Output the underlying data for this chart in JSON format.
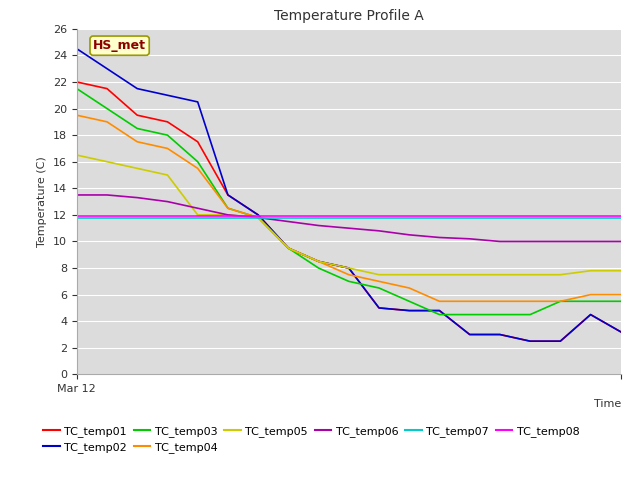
{
  "title": "Temperature Profile A",
  "ylabel": "Temperature (C)",
  "ylim": [
    0,
    26
  ],
  "yticks": [
    0,
    2,
    4,
    6,
    8,
    10,
    12,
    14,
    16,
    18,
    20,
    22,
    24,
    26
  ],
  "x_label_start": "Mar 12",
  "time_label": "Time",
  "annotation_text": "HS_met",
  "annotation_color": "#8B0000",
  "annotation_bg": "#FFFFCC",
  "annotation_border": "#999900",
  "plot_bg": "#DCDCDC",
  "fig_bg": "#FFFFFF",
  "series_order": [
    "TC_temp01",
    "TC_temp02",
    "TC_temp03",
    "TC_temp04",
    "TC_temp05",
    "TC_temp06",
    "TC_temp07",
    "TC_temp08"
  ],
  "series": {
    "TC_temp01": {
      "color": "#FF0000",
      "y": [
        22.0,
        21.5,
        19.5,
        19.0,
        17.5,
        13.5,
        12.0,
        9.5,
        8.5,
        8.0,
        5.0,
        4.8,
        4.8,
        3.0,
        3.0,
        2.5,
        2.5,
        4.5,
        3.2
      ]
    },
    "TC_temp02": {
      "color": "#0000CD",
      "y": [
        24.5,
        23.0,
        21.5,
        21.0,
        20.5,
        13.5,
        12.0,
        9.5,
        8.5,
        8.0,
        5.0,
        4.8,
        4.8,
        3.0,
        3.0,
        2.5,
        2.5,
        4.5,
        3.2
      ]
    },
    "TC_temp03": {
      "color": "#00CC00",
      "y": [
        21.5,
        20.0,
        18.5,
        18.0,
        16.0,
        12.5,
        11.8,
        9.5,
        8.0,
        7.0,
        6.5,
        5.5,
        4.5,
        4.5,
        4.5,
        4.5,
        5.5,
        5.5,
        5.5
      ]
    },
    "TC_temp04": {
      "color": "#FF8C00",
      "y": [
        19.5,
        19.0,
        17.5,
        17.0,
        15.5,
        12.5,
        11.8,
        9.5,
        8.5,
        7.5,
        7.0,
        6.5,
        5.5,
        5.5,
        5.5,
        5.5,
        5.5,
        6.0,
        6.0
      ]
    },
    "TC_temp05": {
      "color": "#CCCC00",
      "y": [
        16.5,
        16.0,
        15.5,
        15.0,
        12.0,
        12.0,
        11.8,
        9.5,
        8.5,
        8.0,
        7.5,
        7.5,
        7.5,
        7.5,
        7.5,
        7.5,
        7.5,
        7.8,
        7.8
      ]
    },
    "TC_temp06": {
      "color": "#AA00AA",
      "y": [
        13.5,
        13.5,
        13.3,
        13.0,
        12.5,
        12.0,
        11.8,
        11.5,
        11.2,
        11.0,
        10.8,
        10.5,
        10.3,
        10.2,
        10.0,
        10.0,
        10.0,
        10.0,
        10.0
      ]
    },
    "TC_temp07": {
      "color": "#00CCCC",
      "y": [
        11.8,
        11.8,
        11.8,
        11.8,
        11.8,
        11.8,
        11.8,
        11.8,
        11.8,
        11.8,
        11.8,
        11.8,
        11.8,
        11.8,
        11.8,
        11.8,
        11.8,
        11.8,
        11.8
      ]
    },
    "TC_temp08": {
      "color": "#FF00FF",
      "y": [
        11.9,
        11.9,
        11.9,
        11.9,
        11.9,
        11.9,
        11.9,
        11.9,
        11.9,
        11.9,
        11.9,
        11.9,
        11.9,
        11.9,
        11.9,
        11.9,
        11.9,
        11.9,
        11.9
      ]
    }
  },
  "legend_row1": [
    "TC_temp01",
    "TC_temp02",
    "TC_temp03",
    "TC_temp04",
    "TC_temp05",
    "TC_temp06"
  ],
  "legend_row2": [
    "TC_temp07",
    "TC_temp08"
  ]
}
